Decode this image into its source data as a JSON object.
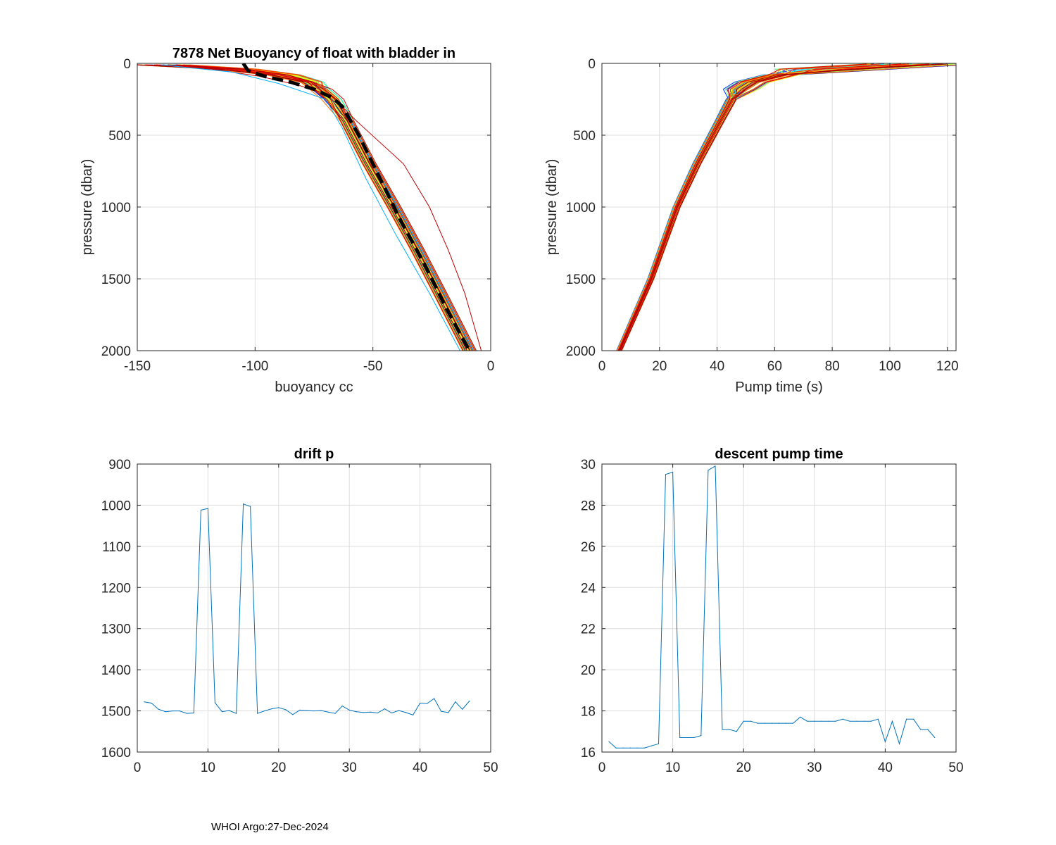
{
  "footer": "WHOI Argo:27-Dec-2024",
  "colors": {
    "line": "#0072BD",
    "mean": "#000000",
    "grid": "#dddddd",
    "palette": [
      "#00008F",
      "#0000DF",
      "#0030FF",
      "#0070FF",
      "#00B0FF",
      "#10F0EF",
      "#50FFAF",
      "#90FF6F",
      "#D0FF2F",
      "#FFEF00",
      "#FFAF00",
      "#FF6F00",
      "#FF2F00",
      "#DF0000",
      "#9F0000"
    ]
  },
  "chart_data": [
    {
      "id": "buoyancy",
      "type": "line",
      "title": "7878 Net Buoyancy of float with bladder in",
      "xlabel": "buoyancy cc",
      "ylabel": "pressure (dbar)",
      "xlim": [
        -150,
        0
      ],
      "ylim": [
        0,
        2000
      ],
      "y_reversed": true,
      "xticks": [
        -150,
        -100,
        -50,
        0
      ],
      "yticks": [
        0,
        500,
        1000,
        1500,
        2000
      ],
      "grid": true,
      "profile_count": 47,
      "typical_profile": {
        "pressure": [
          10,
          40,
          80,
          130,
          180,
          250,
          400,
          700,
          1000,
          1300,
          1600,
          2000
        ],
        "buoyancy": [
          -140,
          -108,
          -88,
          -76,
          -72,
          -67,
          -61,
          -51.5,
          -41,
          -31,
          -21.5,
          -9
        ]
      },
      "mean_profile": {
        "name": "mean",
        "pressure": [
          0,
          50,
          90,
          130,
          180,
          240,
          300,
          500,
          800,
          1100,
          1400,
          1700,
          2000
        ],
        "buoyancy": [
          -105,
          -103,
          -96,
          -85,
          -75,
          -67,
          -63,
          -56,
          -47,
          -38,
          -28,
          -19,
          -9
        ]
      },
      "outlier_profiles": [
        {
          "name": "red outlier",
          "color": "#C00000",
          "pressure": [
            10,
            40,
            90,
            150,
            220,
            400,
            700,
            1000,
            1300,
            1600,
            2000
          ],
          "buoyancy": [
            -142,
            -118,
            -98,
            -82,
            -68,
            -57,
            -37,
            -26,
            -18,
            -11,
            -4
          ]
        },
        {
          "name": "cyan outlier",
          "color": "#00B0FF",
          "pressure": [
            10,
            60,
            140,
            250,
            450,
            800,
            1200,
            1600,
            2000
          ],
          "buoyancy": [
            -140,
            -110,
            -90,
            -70,
            -63,
            -53,
            -40,
            -26,
            -13
          ]
        }
      ]
    },
    {
      "id": "pump",
      "type": "line",
      "title": "",
      "xlabel": "Pump time (s)",
      "ylabel": "pressure (dbar)",
      "xlim": [
        0,
        123
      ],
      "ylim": [
        0,
        2000
      ],
      "y_reversed": true,
      "xticks": [
        0,
        20,
        40,
        60,
        80,
        100,
        120
      ],
      "yticks": [
        0,
        500,
        1000,
        1500,
        2000
      ],
      "grid": true,
      "profile_count": 47,
      "typical_profile": {
        "pressure": [
          2000,
          1500,
          1000,
          700,
          400,
          250,
          180,
          130,
          80,
          40,
          5
        ],
        "pump_time": [
          6,
          17,
          26,
          33,
          41,
          45,
          48,
          52,
          62,
          80,
          110
        ]
      }
    },
    {
      "id": "drift",
      "type": "line",
      "title": "drift p",
      "xlabel": "",
      "ylabel": "",
      "xlim": [
        0,
        50
      ],
      "ylim": [
        900,
        1600
      ],
      "y_reversed": true,
      "xticks": [
        0,
        10,
        20,
        30,
        40,
        50
      ],
      "yticks": [
        900,
        1000,
        1100,
        1200,
        1300,
        1400,
        1500,
        1600
      ],
      "grid": true,
      "x": [
        1,
        2,
        3,
        4,
        5,
        6,
        7,
        8,
        9,
        10,
        11,
        12,
        13,
        14,
        15,
        16,
        17,
        18,
        19,
        20,
        21,
        22,
        23,
        24,
        25,
        26,
        27,
        28,
        29,
        30,
        31,
        32,
        33,
        34,
        35,
        36,
        37,
        38,
        39,
        40,
        41,
        42,
        43,
        44,
        45,
        46,
        47
      ],
      "values": [
        1478,
        1481,
        1496,
        1502,
        1500,
        1500,
        1506,
        1505,
        1012,
        1008,
        1480,
        1502,
        1499,
        1506,
        997,
        1003,
        1506,
        1500,
        1495,
        1492,
        1497,
        1509,
        1498,
        1499,
        1500,
        1499,
        1503,
        1506,
        1488,
        1498,
        1502,
        1504,
        1503,
        1505,
        1495,
        1505,
        1499,
        1504,
        1510,
        1481,
        1482,
        1470,
        1501,
        1504,
        1478,
        1496,
        1476
      ]
    },
    {
      "id": "descent",
      "type": "line",
      "title": "descent pump time",
      "xlabel": "",
      "ylabel": "",
      "xlim": [
        0,
        50
      ],
      "ylim": [
        16,
        30
      ],
      "y_reversed": false,
      "xticks": [
        0,
        10,
        20,
        30,
        40,
        50
      ],
      "yticks": [
        16,
        18,
        20,
        22,
        24,
        26,
        28,
        30
      ],
      "grid": true,
      "x": [
        1,
        2,
        3,
        4,
        5,
        6,
        7,
        8,
        9,
        10,
        11,
        12,
        13,
        14,
        15,
        16,
        17,
        18,
        19,
        20,
        21,
        22,
        23,
        24,
        25,
        26,
        27,
        28,
        29,
        30,
        31,
        32,
        33,
        34,
        35,
        36,
        37,
        38,
        39,
        40,
        41,
        42,
        43,
        44,
        45,
        46,
        47
      ],
      "values": [
        16.5,
        16.2,
        16.2,
        16.2,
        16.2,
        16.2,
        16.3,
        16.4,
        29.5,
        29.6,
        16.7,
        16.7,
        16.7,
        16.8,
        29.7,
        29.9,
        17.1,
        17.1,
        17.0,
        17.5,
        17.5,
        17.4,
        17.4,
        17.4,
        17.4,
        17.4,
        17.4,
        17.7,
        17.5,
        17.5,
        17.5,
        17.5,
        17.5,
        17.6,
        17.5,
        17.5,
        17.5,
        17.5,
        17.6,
        16.5,
        17.5,
        16.4,
        17.6,
        17.6,
        17.1,
        17.1,
        16.7
      ]
    }
  ]
}
